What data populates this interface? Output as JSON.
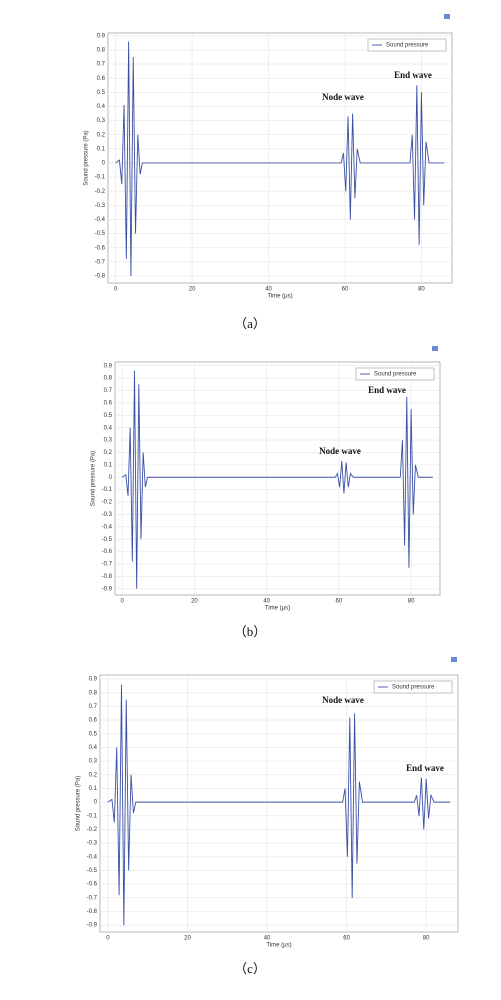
{
  "chart_data": [
    {
      "type": "line",
      "caption": "（a）",
      "xlabel": "Time (μs)",
      "ylabel": "Sound pressure (Pa)",
      "x": [
        0,
        1,
        1.6,
        2.2,
        2.8,
        3.4,
        4,
        4.6,
        5.2,
        5.8,
        6.4,
        7,
        59,
        59.6,
        60.2,
        60.8,
        61.4,
        62,
        62.6,
        63.2,
        64,
        77,
        77.6,
        78.2,
        78.8,
        79.4,
        80,
        80.6,
        81.2,
        82,
        86
      ],
      "series": [
        {
          "name": "Sound pressure",
          "color": "#3b4fa8",
          "values": [
            0,
            0.02,
            -0.15,
            0.41,
            -0.68,
            0.86,
            -0.8,
            0.75,
            -0.5,
            0.2,
            -0.08,
            0,
            0,
            0.07,
            -0.2,
            0.33,
            -0.4,
            0.35,
            -0.25,
            0.1,
            0,
            0,
            0.2,
            -0.4,
            0.55,
            -0.58,
            0.5,
            -0.3,
            0.15,
            0,
            0
          ]
        }
      ],
      "annotations": [
        "Node wave",
        "End wave"
      ],
      "xlim": [
        -2,
        88
      ],
      "xticks": [
        0,
        20,
        40,
        60,
        80
      ],
      "ylim": [
        -0.85,
        0.92
      ],
      "yticks": [
        0.9,
        0.8,
        0.7,
        0.6,
        0.5,
        0.4,
        0.3,
        0.2,
        0.1,
        0,
        -0.1,
        -0.2,
        -0.3,
        -0.4,
        -0.5,
        -0.6,
        -0.7,
        -0.8
      ],
      "grid": true,
      "legend": "upper right"
    },
    {
      "type": "line",
      "caption": "（b）",
      "xlabel": "Time (μs)",
      "ylabel": "Sound pressure (Pa)",
      "x": [
        0,
        1,
        1.6,
        2.2,
        2.8,
        3.4,
        4,
        4.6,
        5.2,
        5.8,
        6.4,
        7,
        59,
        59.6,
        60.2,
        60.8,
        61.4,
        62,
        62.6,
        63.2,
        64,
        77,
        77.6,
        78.2,
        78.8,
        79.4,
        80,
        80.6,
        81.2,
        82,
        86
      ],
      "series": [
        {
          "name": "Sound pressure",
          "color": "#3b4fa8",
          "values": [
            0,
            0.02,
            -0.15,
            0.4,
            -0.68,
            0.86,
            -0.9,
            0.75,
            -0.5,
            0.2,
            -0.08,
            0,
            0,
            0.03,
            -0.08,
            0.13,
            -0.13,
            0.12,
            -0.08,
            0.03,
            0,
            0,
            0.3,
            -0.55,
            0.65,
            -0.73,
            0.55,
            -0.3,
            0.1,
            0,
            0
          ]
        }
      ],
      "annotations": [
        "Node wave",
        "End wave"
      ],
      "xlim": [
        -2,
        88
      ],
      "xticks": [
        0,
        20,
        40,
        60,
        80
      ],
      "ylim": [
        -0.95,
        0.93
      ],
      "yticks": [
        0.9,
        0.8,
        0.7,
        0.6,
        0.5,
        0.4,
        0.3,
        0.2,
        0.1,
        0,
        -0.1,
        -0.2,
        -0.3,
        -0.4,
        -0.5,
        -0.6,
        -0.7,
        -0.8,
        -0.9
      ],
      "grid": true,
      "legend": "upper right"
    },
    {
      "type": "line",
      "caption": "（c）",
      "xlabel": "Time (μs)",
      "ylabel": "Sound pressure (Pa)",
      "x": [
        0,
        1,
        1.6,
        2.2,
        2.8,
        3.4,
        4,
        4.6,
        5.2,
        5.8,
        6.4,
        7,
        59,
        59.6,
        60.2,
        60.8,
        61.4,
        62,
        62.6,
        63.2,
        64,
        77,
        77.6,
        78.2,
        78.8,
        79.4,
        80,
        80.6,
        81.2,
        82,
        86
      ],
      "series": [
        {
          "name": "Sound pressure",
          "color": "#3b4fa8",
          "values": [
            0,
            0.02,
            -0.15,
            0.4,
            -0.68,
            0.86,
            -0.9,
            0.75,
            -0.5,
            0.2,
            -0.08,
            0,
            0,
            0.1,
            -0.4,
            0.62,
            -0.7,
            0.65,
            -0.45,
            0.15,
            0,
            0,
            0.05,
            -0.1,
            0.18,
            -0.2,
            0.17,
            -0.12,
            0.05,
            0,
            0
          ]
        }
      ],
      "annotations": [
        "Node wave",
        "End wave"
      ],
      "xlim": [
        -2,
        88
      ],
      "xticks": [
        0,
        20,
        40,
        60,
        80
      ],
      "ylim": [
        -0.95,
        0.93
      ],
      "yticks": [
        0.9,
        0.8,
        0.7,
        0.6,
        0.5,
        0.4,
        0.3,
        0.2,
        0.1,
        0,
        -0.1,
        -0.2,
        -0.3,
        -0.4,
        -0.5,
        -0.6,
        -0.7,
        -0.8,
        -0.9
      ],
      "grid": true,
      "legend": "upper right"
    }
  ]
}
